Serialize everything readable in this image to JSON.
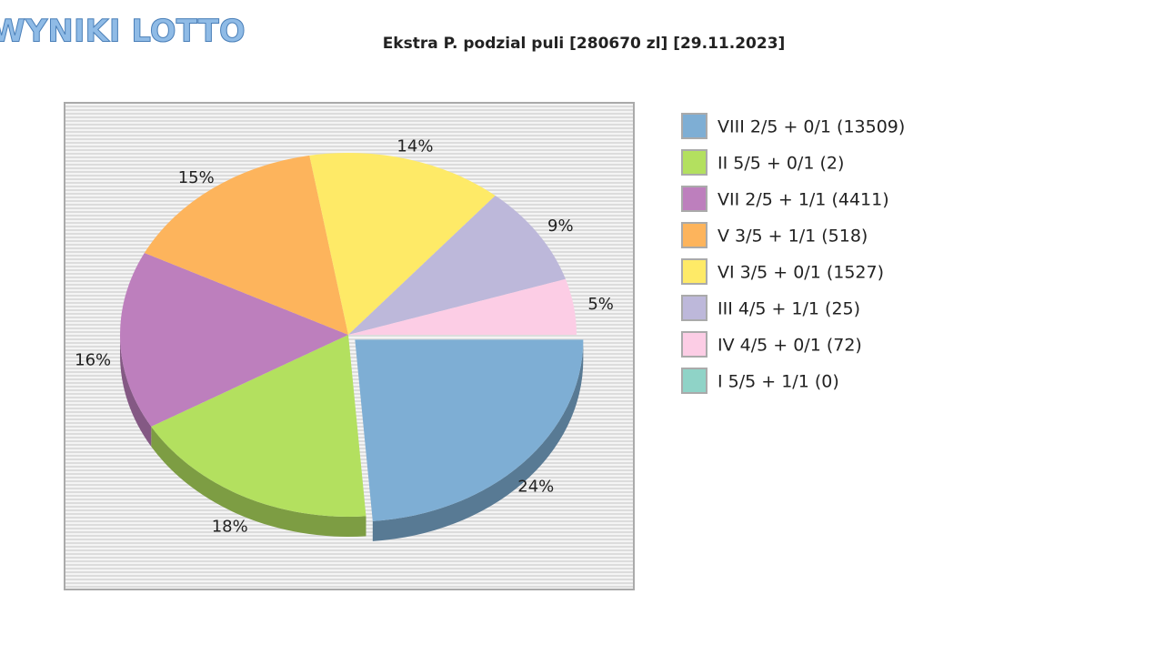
{
  "header": {
    "logo": "WYNIKI LOTTO"
  },
  "chart_data": {
    "type": "pie",
    "title": "Ekstra P. podzial puli [280670 zl] [29.11.2023]",
    "categories": [
      "VIII 2/5 + 0/1 (13509)",
      "II 5/5 + 0/1 (2)",
      "VII 2/5 + 1/1 (4411)",
      "V 3/5 + 1/1 (518)",
      "VI 3/5 + 0/1 (1527)",
      "III 4/5 + 1/1 (25)",
      "IV 4/5 + 0/1 (72)",
      "I 5/5 + 1/1 (0)"
    ],
    "values": [
      24,
      18,
      16,
      15,
      14,
      9,
      5,
      0
    ],
    "value_labels": [
      "24%",
      "18%",
      "16%",
      "15%",
      "14%",
      "9%",
      "5%",
      null
    ],
    "colors": [
      "#7eaed4",
      "#b3e05f",
      "#bd7fbd",
      "#fdb45c",
      "#feea67",
      "#bdb8da",
      "#fccde5",
      "#8fd3c7"
    ],
    "legend": "right"
  }
}
